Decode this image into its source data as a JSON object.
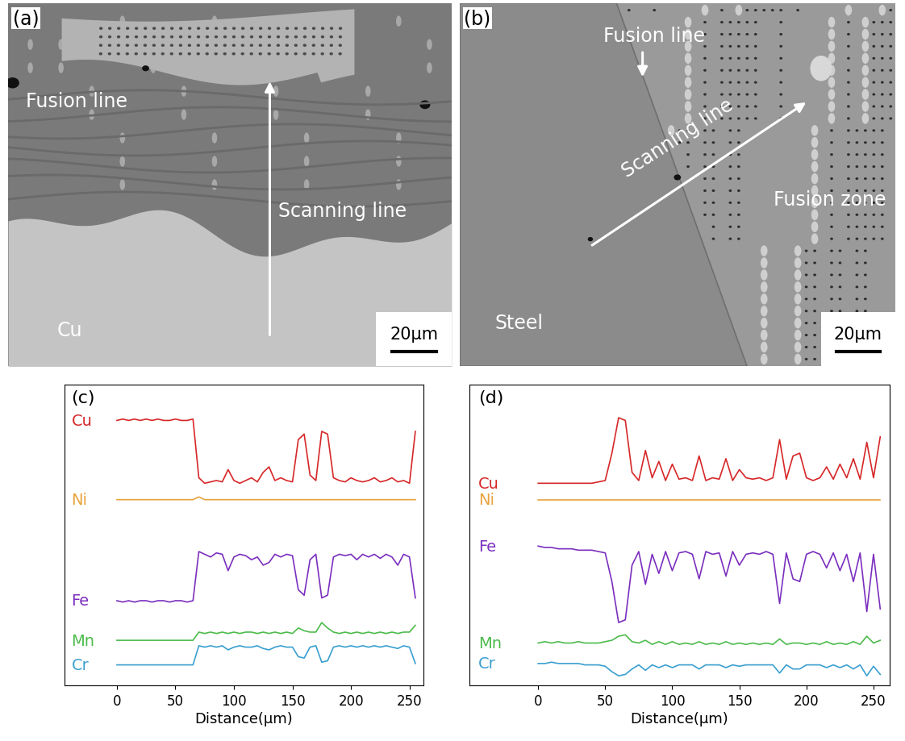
{
  "panels": [
    {
      "label": "(a)",
      "fusion_line": "Fusion line",
      "scanning_line": "Scanning line",
      "base_metal": "Cu",
      "scale_bar": "20μm"
    },
    {
      "label": "(b)",
      "fusion_line": "Fusion line",
      "scanning_line": "Scanning line",
      "base_metal": "Steel",
      "fusion_zone": "Fusion zone",
      "scale_bar": "20μm"
    }
  ],
  "chart_data": [
    {
      "type": "line",
      "title": "(c)",
      "x_label": "Distance(μm)",
      "tick_labels": "x",
      "xlim": [
        -45,
        262
      ],
      "xticks": [
        0,
        50,
        100,
        150,
        200,
        250
      ],
      "ylim": [
        0,
        110
      ],
      "x": [
        0,
        5,
        10,
        15,
        20,
        25,
        30,
        35,
        40,
        45,
        50,
        55,
        60,
        65,
        70,
        75,
        80,
        85,
        90,
        95,
        100,
        105,
        110,
        115,
        120,
        125,
        130,
        135,
        140,
        145,
        150,
        155,
        160,
        165,
        170,
        175,
        180,
        185,
        190,
        195,
        200,
        205,
        210,
        215,
        220,
        225,
        230,
        235,
        240,
        245,
        250,
        255
      ],
      "series": [
        {
          "name": "Cu",
          "color": "#d62728",
          "values": [
            97,
            97.5,
            97,
            97.5,
            97,
            97.5,
            97,
            97.5,
            97,
            97,
            97.5,
            97,
            97,
            97.5,
            76,
            74,
            74.5,
            75,
            74.5,
            79,
            75,
            74,
            75,
            76,
            74.5,
            78,
            80,
            75,
            76,
            75,
            74.5,
            90,
            92,
            77,
            75,
            93,
            92,
            76,
            75,
            74.5,
            76,
            75,
            74.5,
            75,
            76,
            74.5,
            75,
            76,
            74.5,
            75,
            74,
            93
          ]
        },
        {
          "name": "Ni",
          "color": "#e8a33d",
          "values": [
            68,
            68,
            68,
            68,
            68,
            68,
            68,
            68,
            68,
            68,
            68,
            68,
            68,
            68,
            69,
            68,
            68,
            68,
            68,
            68,
            68,
            68,
            68,
            68,
            68,
            68,
            68,
            68,
            68,
            68,
            68,
            68,
            68,
            68,
            68,
            68,
            68,
            68,
            68,
            68,
            68,
            68,
            68,
            68,
            68,
            68,
            68,
            68,
            68,
            68,
            68,
            68
          ]
        },
        {
          "name": "Fe",
          "color": "#7b2fbe",
          "values": [
            31,
            30.5,
            31,
            30.5,
            31,
            31,
            30.5,
            31,
            31,
            30.5,
            31,
            31,
            30.5,
            31,
            49,
            48,
            47,
            48.5,
            48,
            42,
            47,
            48,
            47.5,
            46,
            47,
            44,
            45,
            48,
            47,
            48,
            47.5,
            35,
            33,
            46,
            48,
            32,
            33,
            47,
            48,
            47.5,
            48,
            46,
            48,
            47,
            48,
            46.5,
            48,
            47,
            44,
            48,
            47,
            32
          ]
        },
        {
          "name": "Mn",
          "color": "#4cbb4c",
          "values": [
            16.5,
            16.5,
            16.5,
            16.5,
            16.5,
            16.5,
            16.5,
            16.5,
            16.5,
            16.5,
            16.5,
            16.5,
            16.5,
            16.5,
            19.5,
            19,
            19.5,
            19,
            19.5,
            19,
            19.5,
            19,
            19.5,
            19.5,
            19,
            19.5,
            19,
            19.5,
            19,
            19.5,
            19,
            21,
            20,
            19.5,
            19.5,
            23,
            21,
            19.5,
            19,
            19.5,
            19,
            19.5,
            19,
            19.5,
            19,
            19.5,
            19,
            19.5,
            19,
            19.5,
            19.5,
            22
          ]
        },
        {
          "name": "Cr",
          "color": "#3a9fd0",
          "values": [
            7.5,
            7.5,
            7.5,
            7.5,
            7.5,
            7.5,
            7.5,
            7.5,
            7.5,
            7.5,
            7.5,
            7.5,
            7.5,
            7.5,
            14.5,
            14,
            14.5,
            14,
            14.5,
            13,
            14,
            14.5,
            14,
            14,
            14.5,
            13.5,
            13,
            14,
            14.5,
            14,
            14,
            10.5,
            10,
            14,
            14.5,
            8.5,
            9,
            14,
            14.5,
            14,
            14.5,
            14,
            14.5,
            14,
            14.5,
            14,
            14.5,
            14,
            13.5,
            14.5,
            14,
            8
          ]
        }
      ]
    },
    {
      "type": "line",
      "title": "(d)",
      "x_label": "Distance(μm)",
      "tick_labels": "x",
      "xlim": [
        -51,
        262
      ],
      "xticks": [
        0,
        50,
        100,
        150,
        200,
        250
      ],
      "ylim": [
        0,
        110
      ],
      "x": [
        0,
        5,
        10,
        15,
        20,
        25,
        30,
        35,
        40,
        45,
        50,
        55,
        60,
        65,
        70,
        75,
        80,
        85,
        90,
        95,
        100,
        105,
        110,
        115,
        120,
        125,
        130,
        135,
        140,
        145,
        150,
        155,
        160,
        165,
        170,
        175,
        180,
        185,
        190,
        195,
        200,
        205,
        210,
        215,
        220,
        225,
        230,
        235,
        240,
        245,
        250,
        255
      ],
      "series": [
        {
          "name": "Cu",
          "color": "#d62728",
          "values": [
            74,
            74,
            74,
            74,
            74,
            74,
            74,
            74,
            74,
            74.5,
            75,
            85,
            98,
            97,
            78,
            75,
            86,
            76,
            82,
            75,
            81,
            75.5,
            76,
            75,
            84,
            75,
            76,
            75.5,
            83,
            75,
            79,
            76,
            75.5,
            76,
            75,
            76,
            90,
            75.5,
            84,
            85,
            76,
            75,
            76,
            80,
            75.5,
            81,
            76,
            83,
            75.5,
            89,
            76,
            91
          ]
        },
        {
          "name": "Ni",
          "color": "#e8a33d",
          "values": [
            68,
            68,
            68,
            68,
            68,
            68,
            68,
            68,
            68,
            68,
            68,
            68,
            68,
            68,
            68,
            68,
            68,
            68,
            68,
            68,
            68,
            68,
            68,
            68,
            68,
            68,
            68,
            68,
            68,
            68,
            68,
            68,
            68,
            68,
            68,
            68,
            68,
            68,
            68,
            68,
            68,
            68,
            68,
            68,
            68,
            68,
            68,
            68,
            68,
            68,
            68,
            68
          ]
        },
        {
          "name": "Fe",
          "color": "#7b2fbe",
          "values": [
            51,
            50.5,
            50.5,
            50,
            50,
            50,
            49.5,
            49.5,
            49.5,
            49,
            48.5,
            38,
            23,
            24,
            44,
            49,
            37,
            48,
            41,
            49,
            42,
            48.5,
            49,
            48,
            39,
            49,
            48,
            48.5,
            40,
            49,
            44,
            48,
            48.5,
            48,
            49,
            48,
            30,
            48.5,
            39,
            38,
            48,
            49,
            48,
            43,
            48.5,
            42,
            48,
            38,
            48.5,
            27,
            48,
            28
          ]
        },
        {
          "name": "Mn",
          "color": "#4cbb4c",
          "values": [
            15.5,
            16,
            15.5,
            16,
            15.5,
            15.5,
            16,
            15.5,
            15.5,
            15.5,
            16,
            16.5,
            18,
            18.5,
            16,
            15.5,
            16.5,
            15,
            16,
            15,
            16,
            15,
            15.5,
            15,
            16,
            15,
            15.5,
            15,
            16,
            15,
            15.5,
            15,
            15.5,
            15,
            15.5,
            15,
            17,
            15,
            15.5,
            15.5,
            15,
            15.5,
            15,
            16,
            15,
            15.5,
            15,
            16,
            15,
            18,
            15.5,
            16.5
          ]
        },
        {
          "name": "Cr",
          "color": "#3a9fd0",
          "values": [
            8,
            8,
            8.5,
            8,
            8,
            8,
            8,
            7.5,
            7.5,
            7.5,
            7,
            5,
            3.5,
            4,
            6,
            7.5,
            5.5,
            7.5,
            6.5,
            7.5,
            6.5,
            7.5,
            7.5,
            7.5,
            6,
            7.5,
            7.5,
            7.5,
            6.5,
            7.5,
            7,
            7.5,
            7.5,
            7.5,
            7.5,
            7.5,
            4.5,
            7.5,
            6,
            6,
            7.5,
            7.5,
            7.5,
            6.5,
            7.5,
            6.5,
            7.5,
            6,
            7.5,
            3.5,
            7,
            4
          ]
        }
      ]
    }
  ]
}
